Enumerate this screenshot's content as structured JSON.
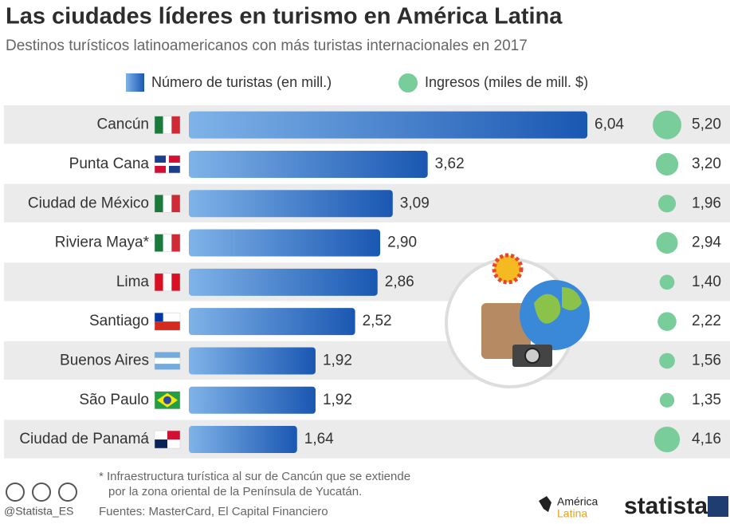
{
  "chart_data": {
    "type": "bar",
    "title": "Las ciudades líderes en turismo en América Latina",
    "subtitle": "Destinos turísticos latinoamericanos con más turistas internacionales en 2017",
    "categories": [
      "Cancún",
      "Punta Cana",
      "Ciudad de México",
      "Riviera Maya*",
      "Lima",
      "Santiago",
      "Buenos Aires",
      "São Paulo",
      "Ciudad de Panamá"
    ],
    "series": [
      {
        "name": "Número de turistas (en mill.)",
        "color": "#1a57b2",
        "values": [
          6.04,
          3.62,
          3.09,
          2.9,
          2.86,
          2.52,
          1.92,
          1.92,
          1.64
        ],
        "value_labels": [
          "6,04",
          "3,62",
          "3,09",
          "2,90",
          "2,86",
          "2,52",
          "1,92",
          "1,92",
          "1,64"
        ]
      },
      {
        "name": "Ingresos (miles de mill. $)",
        "color": "#78cd9a",
        "values": [
          5.2,
          3.2,
          1.96,
          2.94,
          1.4,
          2.22,
          1.56,
          1.35,
          4.16
        ],
        "value_labels": [
          "5,20",
          "3,20",
          "1,96",
          "2,94",
          "1,40",
          "2,22",
          "1,56",
          "1,35",
          "4,16"
        ]
      }
    ],
    "footnote": [
      "* Infraestructura turística al sur de Cancún que se extiende",
      "por la zona oriental de la Península de Yucatán."
    ],
    "source": "Fuentes: MasterCard, El Capital Financiero",
    "credit": "@Statista_ES",
    "logos": [
      "América",
      "Latina",
      "statista"
    ]
  }
}
